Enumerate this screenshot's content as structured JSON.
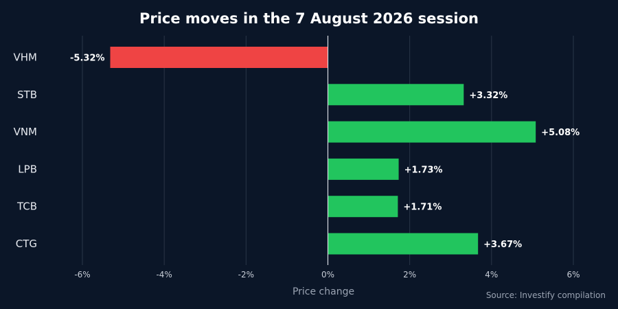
{
  "chart_data": {
    "type": "bar",
    "orientation": "horizontal",
    "title": "Price moves in the 7 August 2026 session",
    "xlabel": "Price change",
    "ylabel": "",
    "categories": [
      "VHM",
      "STB",
      "VNM",
      "LPB",
      "TCB",
      "CTG"
    ],
    "values": [
      -5.32,
      3.32,
      5.08,
      1.73,
      1.71,
      3.67
    ],
    "value_labels": [
      "-5.32%",
      "+3.32%",
      "+5.08%",
      "+1.73%",
      "+1.71%",
      "+3.67%"
    ],
    "xlim": [
      -6,
      6
    ],
    "xticks": [
      -6,
      -4,
      -2,
      0,
      2,
      4,
      6
    ],
    "xtick_labels": [
      "-6%",
      "-4%",
      "-2%",
      "0%",
      "2%",
      "4%",
      "6%"
    ],
    "grid": "vertical",
    "colors": {
      "positive": "#22c55e",
      "negative": "#ef4444",
      "background": "#0b1628"
    }
  },
  "source": "Source: Investify compilation"
}
